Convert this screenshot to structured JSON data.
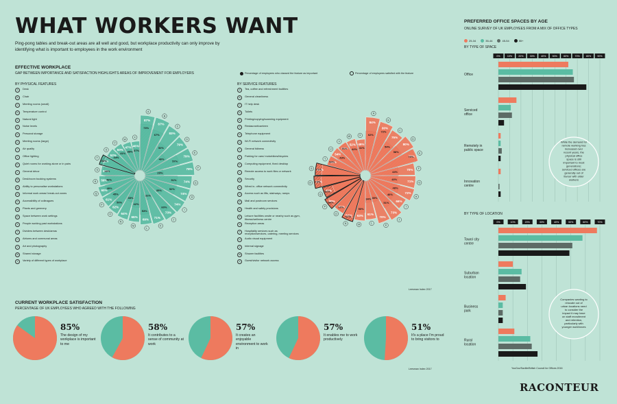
{
  "header": {
    "title": "WHAT WORKERS WANT",
    "intro": "Ping-pong tables and break-out areas are all well and good, but workplace productivity can only improve by identifying what is important to employees in the work environment"
  },
  "effective": {
    "title": "EFFECTIVE WORKPLACE",
    "subtitle": "GAP BETWEEN IMPORTANCE AND SATISFACTION HIGHLIGHTS AREAS OF IMPROVEMENT FOR EMPLOYERS",
    "legend_important": "Percentage of employees who classed the feature as important",
    "legend_satisfied": "Percentage of employees satisfied with the feature",
    "physical_title": "BY PHYSICAL FEATURES",
    "service_title": "BY SERVICE FEATURES",
    "source": "Leesman Index 2017"
  },
  "colors": {
    "teal": "#5bbca3",
    "coral": "#ee7a5e",
    "background": "#bfe3d6",
    "dark": "#1a1a1a"
  },
  "chart_data": [
    {
      "type": "radial_bar",
      "name": "physical",
      "categories": [
        "A",
        "B",
        "C",
        "D",
        "E",
        "F",
        "G",
        "H",
        "I",
        "J",
        "K",
        "L",
        "M",
        "N",
        "O",
        "P",
        "Q",
        "R",
        "S",
        "T",
        "U",
        "V",
        "W",
        "X"
      ],
      "labels": [
        "Desk",
        "Chair",
        "Meeting rooms (small)",
        "Temperature control",
        "Natural light",
        "Noise levels",
        "Personal storage",
        "Meeting rooms (large)",
        "Air quality",
        "Office lighting",
        "Quiet rooms for working alone or in pairs",
        "General décor",
        "Desk/room booking systems",
        "Ability to personalise workstations",
        "Informal work areas/ break-out zones",
        "Accessibility of colleagues",
        "Plants and greenery",
        "Space between work settings",
        "People working past workstations",
        "Dividers between desk/areas",
        "Atriums and communal areas",
        "Art and photography",
        "Shared storage",
        "Variety of different types of workplace"
      ],
      "importance": [
        87,
        87,
        83,
        79,
        79,
        78,
        74,
        74,
        74,
        73,
        71,
        69,
        65,
        64,
        62,
        61,
        60,
        56,
        53,
        52,
        52,
        50,
        47,
        46
      ],
      "satisfaction": [
        73,
        67,
        52,
        40,
        57,
        29,
        51,
        52,
        35,
        60,
        31,
        53,
        42,
        35,
        50,
        45,
        49,
        46,
        49,
        58,
        44,
        41,
        38,
        37
      ]
    },
    {
      "type": "radial_bar",
      "name": "service",
      "categories": [
        "A",
        "B",
        "C",
        "D",
        "E",
        "F",
        "G",
        "H",
        "I",
        "J",
        "K",
        "L",
        "M",
        "N",
        "O",
        "P",
        "Q",
        "R",
        "S",
        "T",
        "U",
        "V",
        "W",
        "X"
      ],
      "labels": [
        "Tea, coffee and refreshment facilities",
        "General cleanliness",
        "IT help desk",
        "Toilets",
        "Printing/copying/scanning equipment",
        "Restaurant/canteen",
        "Telephone equipment",
        "Wi-Fi network connectivity",
        "General tidiness",
        "Parking for cars/ motorbikes/bicycles",
        "Computing equipment, fixed desktop",
        "Remote access to work files or network",
        "Security",
        "Wired in- office network connectivity",
        "Access such as lifts, stairways, ramps",
        "Mail and postroom services",
        "Health and safety provisions",
        "Leisure facilities onsite or nearby such as gym, fitness/wellness centre",
        "Reception areas",
        "Hospitality services such as reception/services, catering, meeting services",
        "Audio visual equipment",
        "Internal signage",
        "Shower facilities",
        "Guest/visitor network access"
      ],
      "importance": [
        84,
        80,
        75,
        80,
        78,
        70,
        71,
        72,
        66,
        73,
        70,
        61,
        63,
        61,
        61,
        60,
        46,
        62,
        61,
        54,
        54,
        53,
        52,
        49
      ],
      "satisfaction": [
        62,
        72,
        54,
        58,
        75,
        44,
        43,
        48,
        46,
        51,
        35,
        34,
        50,
        67,
        60,
        66,
        62,
        73,
        71,
        54,
        43,
        51,
        42,
        41
      ]
    },
    {
      "type": "pie",
      "name": "satisfaction",
      "title": "CURRENT WORKPLACE SATISFACTION",
      "subtitle": "PERCENTAGE OF UK EMPLOYEES WHO AGREED WITH THE FOLLOWING",
      "source": "Leesman Index 2017",
      "items": [
        {
          "value": 85,
          "label": "85%",
          "text": "The design of my workplace is important to me"
        },
        {
          "value": 58,
          "label": "58%",
          "text": "It contributes to a sense of community at work"
        },
        {
          "value": 57,
          "label": "57%",
          "text": "It creates an enjoyable environment to work in"
        },
        {
          "value": 57,
          "label": "57%",
          "text": "It enables me to work productively"
        },
        {
          "value": 51,
          "label": "51%",
          "text": "It's a place I'm proud to bring visitors to"
        }
      ]
    },
    {
      "type": "bar",
      "name": "space",
      "title": "PREFERRED OFFICE SPACES BY AGE",
      "subtitle": "ONLINE SURVEY OF UK EMPLOYEES FROM A MIX OF OFFICE TYPES",
      "section": "BY TYPE OF SPACE",
      "ticks": [
        "0%",
        "10%",
        "20%",
        "30%",
        "40%",
        "50%",
        "60%",
        "70%",
        "80%",
        "90%"
      ],
      "xlim": [
        0,
        90
      ],
      "series": [
        {
          "name": "25-34"
        },
        {
          "name": "35-44"
        },
        {
          "name": "45-54"
        },
        {
          "name": "55+"
        }
      ],
      "categories": [
        "Office",
        "Serviced office",
        "Remotely in public space",
        "Innovation centre"
      ],
      "values": [
        [
          62,
          66,
          67,
          78
        ],
        [
          16,
          11,
          12,
          5
        ],
        [
          2,
          2,
          3,
          2
        ],
        [
          2,
          0,
          1,
          2
        ]
      ],
      "annotation": "While the demand for remote working has increased over recent years, the physical office space is still important to most generations; serviced offices are generally out of favour with older workers"
    },
    {
      "type": "bar",
      "name": "location",
      "section": "BY TYPE OF LOCATION",
      "ticks": [
        "0%",
        "10%",
        "20%",
        "30%",
        "40%",
        "50%",
        "60%",
        "70%"
      ],
      "xlim": [
        0,
        70
      ],
      "categories": [
        "Town/ city centre",
        "Suburban location",
        "Business park",
        "Rural location"
      ],
      "values": [
        [
          68,
          58,
          51,
          49
        ],
        [
          10,
          16,
          15,
          19
        ],
        [
          5,
          3,
          3,
          3
        ],
        [
          11,
          22,
          23,
          27
        ]
      ],
      "annotation": "Companies wanting to relocate out of urban locations need to consider the impact it may have on staff recruitment and retention, particularly with younger workforces",
      "source": "YouGov/Saville/British Council for Offices 2016"
    }
  ],
  "footer": {
    "brand": "RACONTEUR"
  }
}
